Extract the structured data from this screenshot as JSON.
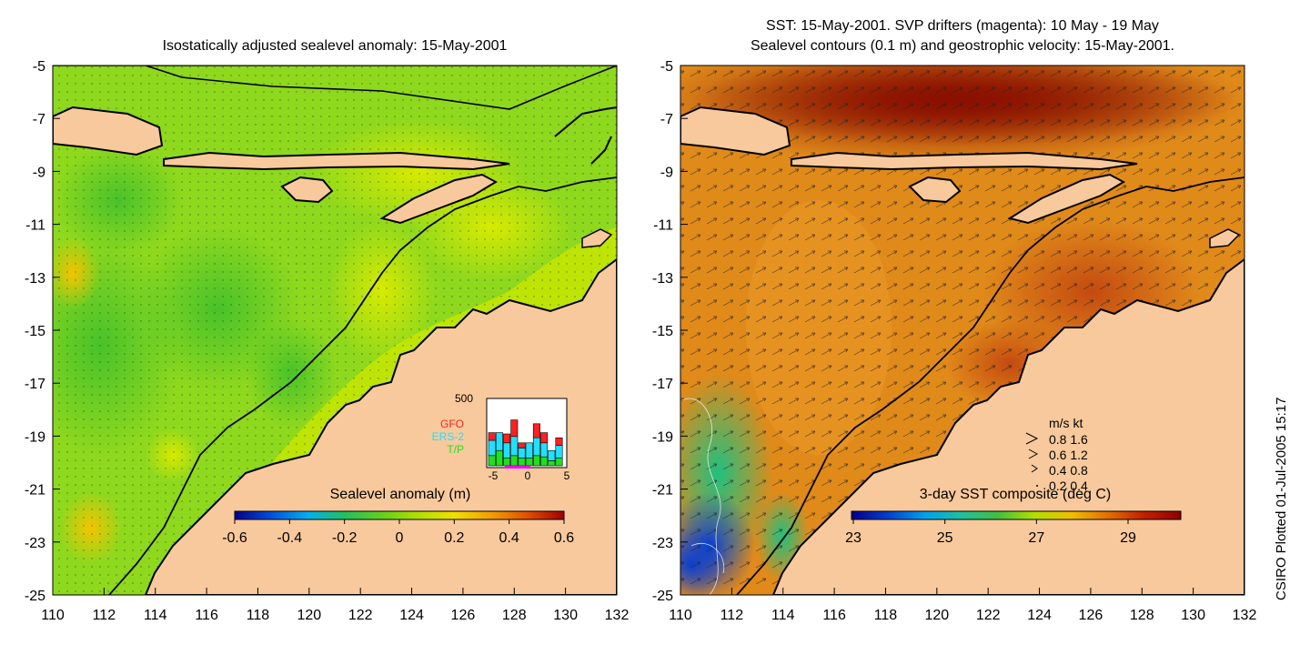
{
  "left_panel": {
    "title": "Isostatically adjusted sealevel anomaly: 15-May-2001",
    "colorbar_label": "Sealevel anomaly (m)",
    "colorbar_ticks": [
      "-0.6",
      "-0.4",
      "-0.2",
      "0",
      "0.2",
      "0.4",
      "0.6"
    ],
    "colorbar_colors": [
      "#00008b",
      "#0050e0",
      "#00b0f0",
      "#20c060",
      "#60d020",
      "#b0e000",
      "#f0e000",
      "#f0a000",
      "#e05000",
      "#a00000"
    ],
    "inset": {
      "ymax_label": "500",
      "legend": [
        {
          "name": "GFO",
          "color": "#ff2020"
        },
        {
          "name": "ERS-2",
          "color": "#20e0ff"
        },
        {
          "name": "T/P",
          "color": "#20e020"
        }
      ],
      "x_ticks": [
        "-5",
        "0",
        "5"
      ],
      "bars": [
        {
          "tp": 80,
          "ers": 120,
          "gfo": 60
        },
        {
          "tp": 120,
          "ers": 140,
          "gfo": 0
        },
        {
          "tp": 60,
          "ers": 120,
          "gfo": 70
        },
        {
          "tp": 80,
          "ers": 150,
          "gfo": 130
        },
        {
          "tp": 60,
          "ers": 80,
          "gfo": 40
        },
        {
          "tp": 60,
          "ers": 120,
          "gfo": 0
        },
        {
          "tp": 80,
          "ers": 140,
          "gfo": 110
        },
        {
          "tp": 70,
          "ers": 110,
          "gfo": 80
        },
        {
          "tp": 40,
          "ers": 80,
          "gfo": 0
        },
        {
          "tp": 60,
          "ers": 100,
          "gfo": 60
        }
      ]
    }
  },
  "right_panel": {
    "title_line1": "SST: 15-May-2001. SVP drifters (magenta): 10 May - 19 May",
    "title_line2": "Sealevel contours (0.1 m) and geostrophic velocity: 15-May-2001.",
    "colorbar_label": "3-day SST composite (deg C)",
    "colorbar_ticks": [
      "23",
      "25",
      "27",
      "29"
    ],
    "colorbar_colors": [
      "#00008b",
      "#0040d0",
      "#00a0f0",
      "#20c0a0",
      "#40c040",
      "#b0e000",
      "#f0c000",
      "#e07000",
      "#c02000",
      "#900000"
    ],
    "velocity_legend": {
      "header": "m/s  kt",
      "rows": [
        "0.8  1.6",
        "0.6  1.2",
        "0.4  0.8",
        "0.2  0.4"
      ]
    }
  },
  "axes": {
    "x_ticks": [
      "110",
      "112",
      "114",
      "116",
      "118",
      "120",
      "122",
      "124",
      "126",
      "128",
      "130",
      "132"
    ],
    "y_ticks": [
      "-5",
      "-7",
      "-9",
      "-11",
      "-13",
      "-15",
      "-17",
      "-19",
      "-21",
      "-23",
      "-25"
    ]
  },
  "footer_rotated": "CSIRO Plotted 01-Jul-2005 15:17",
  "colors": {
    "land": "#f8c99c",
    "coast": "#000000",
    "ssh_base": "#8ed81e",
    "sst_base": "#e08a1a"
  }
}
